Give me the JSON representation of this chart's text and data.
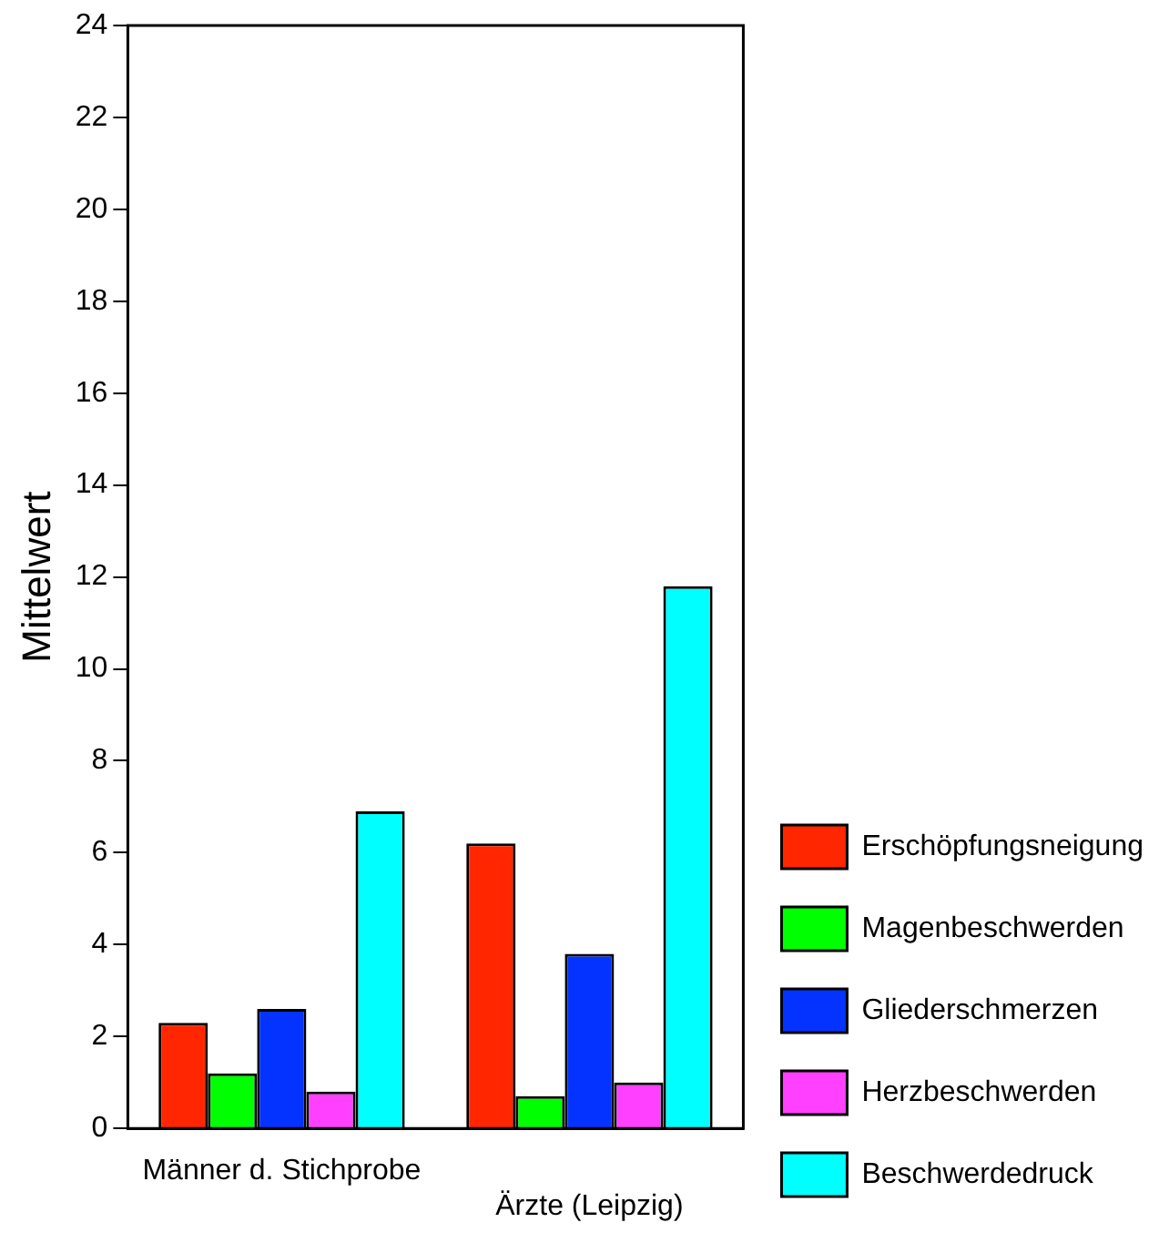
{
  "chart_data": {
    "type": "bar",
    "ylabel": "Mittelwert",
    "categories": [
      "Männer d. Stichprobe",
      "Ärzte (Leipzig)"
    ],
    "series": [
      {
        "name": "Erschöpfungsneigung",
        "color": "#ff2600",
        "values": [
          2.3,
          6.2
        ]
      },
      {
        "name": "Magenbeschwerden",
        "color": "#00ff00",
        "values": [
          1.2,
          0.7
        ]
      },
      {
        "name": "Gliederschmerzen",
        "color": "#0433ff",
        "values": [
          2.6,
          3.8
        ]
      },
      {
        "name": "Herzbeschwerden",
        "color": "#ff40ff",
        "values": [
          0.8,
          1.0
        ]
      },
      {
        "name": "Beschwerdedruck",
        "color": "#00ffff",
        "values": [
          6.9,
          11.8
        ]
      }
    ],
    "ylim": [
      0,
      24
    ],
    "yticks": [
      0,
      2,
      4,
      6,
      8,
      10,
      12,
      14,
      16,
      18,
      20,
      22,
      24
    ],
    "grid": false,
    "legend": "right"
  }
}
